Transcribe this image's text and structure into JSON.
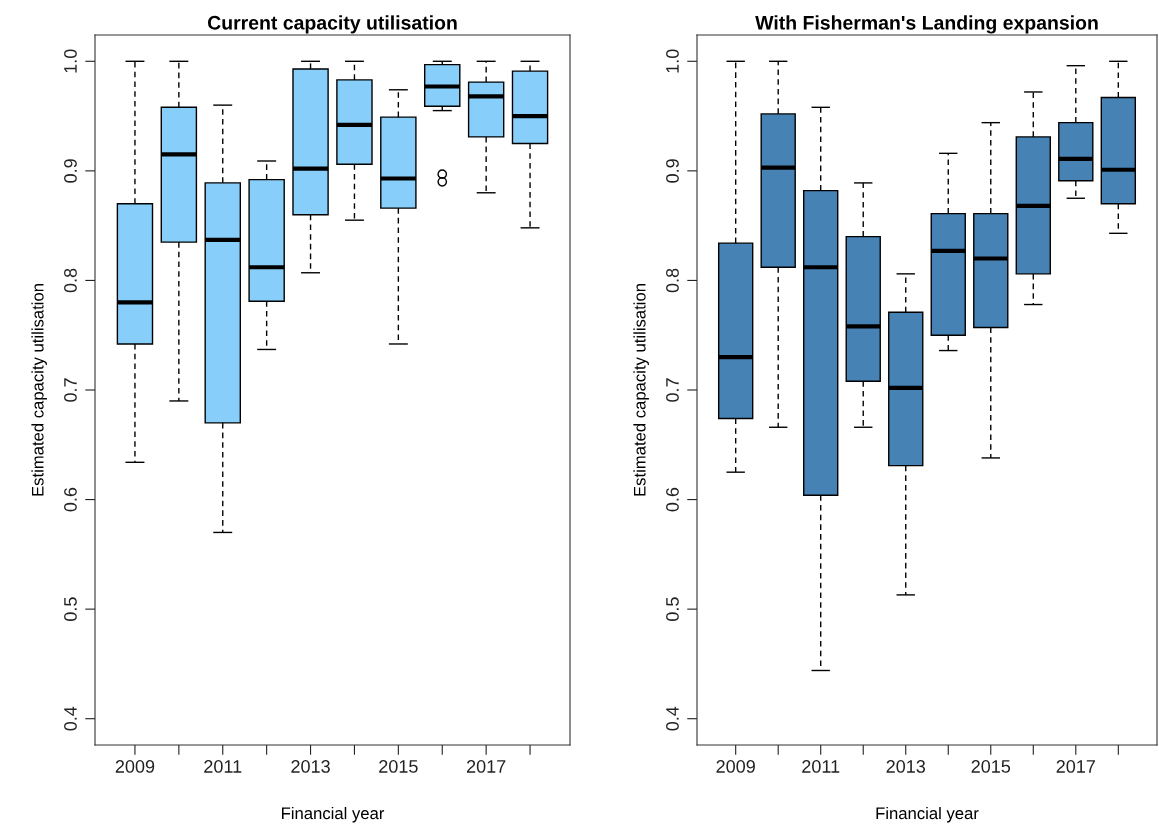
{
  "chart_data": [
    {
      "type": "box",
      "title": "Current capacity utilisation",
      "xlabel": "Financial year",
      "ylabel": "Estimated capacity utilisation",
      "categories": [
        "2009",
        null,
        "2011",
        null,
        "2013",
        null,
        "2015",
        null,
        "2017",
        null
      ],
      "ylim": [
        0.376,
        1.024
      ],
      "yticks": [
        0.4,
        0.5,
        0.6,
        0.7,
        0.8,
        0.9,
        {
          "value": 1,
          "label": "1.0"
        }
      ],
      "series": [
        {
          "color": "#87cefa",
          "boxes": [
            {
              "low": 0.634,
              "q1": 0.742,
              "median": 0.78,
              "q3": 0.87,
              "high": 1.0
            },
            {
              "low": 0.69,
              "q1": 0.835,
              "median": 0.915,
              "q3": 0.958,
              "high": 1.0
            },
            {
              "low": 0.57,
              "q1": 0.67,
              "median": 0.837,
              "q3": 0.889,
              "high": 0.96
            },
            {
              "low": 0.737,
              "q1": 0.781,
              "median": 0.812,
              "q3": 0.892,
              "high": 0.909
            },
            {
              "low": 0.807,
              "q1": 0.86,
              "median": 0.902,
              "q3": 0.993,
              "high": 1.0
            },
            {
              "low": 0.855,
              "q1": 0.906,
              "median": 0.942,
              "q3": 0.983,
              "high": 1.0
            },
            {
              "low": 0.742,
              "q1": 0.866,
              "median": 0.893,
              "q3": 0.949,
              "high": 0.974
            },
            {
              "low": 0.955,
              "q1": 0.959,
              "median": 0.977,
              "q3": 0.997,
              "high": 1.0,
              "outliers": [
                0.89,
                0.897
              ]
            },
            {
              "low": 0.88,
              "q1": 0.931,
              "median": 0.968,
              "q3": 0.981,
              "high": 1.0
            },
            {
              "low": 0.848,
              "q1": 0.925,
              "median": 0.95,
              "q3": 0.991,
              "high": 1.0
            }
          ]
        }
      ]
    },
    {
      "type": "box",
      "title": "With Fisherman's Landing expansion",
      "xlabel": "Financial year",
      "ylabel": "Estimated capacity utilisation",
      "categories": [
        "2009",
        null,
        "2011",
        null,
        "2013",
        null,
        "2015",
        null,
        "2017",
        null
      ],
      "ylim": [
        0.376,
        1.024
      ],
      "yticks": [
        0.4,
        0.5,
        0.6,
        0.7,
        0.8,
        0.9,
        {
          "value": 1,
          "label": "1.0"
        }
      ],
      "series": [
        {
          "color": "#4682b4",
          "boxes": [
            {
              "low": 0.625,
              "q1": 0.674,
              "median": 0.73,
              "q3": 0.834,
              "high": 1.0
            },
            {
              "low": 0.666,
              "q1": 0.812,
              "median": 0.903,
              "q3": 0.952,
              "high": 1.0
            },
            {
              "low": 0.444,
              "q1": 0.604,
              "median": 0.812,
              "q3": 0.882,
              "high": 0.958
            },
            {
              "low": 0.666,
              "q1": 0.708,
              "median": 0.758,
              "q3": 0.84,
              "high": 0.889
            },
            {
              "low": 0.513,
              "q1": 0.631,
              "median": 0.702,
              "q3": 0.771,
              "high": 0.806
            },
            {
              "low": 0.736,
              "q1": 0.75,
              "median": 0.827,
              "q3": 0.861,
              "high": 0.916
            },
            {
              "low": 0.638,
              "q1": 0.757,
              "median": 0.82,
              "q3": 0.861,
              "high": 0.944
            },
            {
              "low": 0.778,
              "q1": 0.806,
              "median": 0.868,
              "q3": 0.931,
              "high": 0.972
            },
            {
              "low": 0.875,
              "q1": 0.891,
              "median": 0.911,
              "q3": 0.944,
              "high": 0.996
            },
            {
              "low": 0.843,
              "q1": 0.87,
              "median": 0.901,
              "q3": 0.967,
              "high": 1.0
            }
          ]
        }
      ]
    }
  ]
}
